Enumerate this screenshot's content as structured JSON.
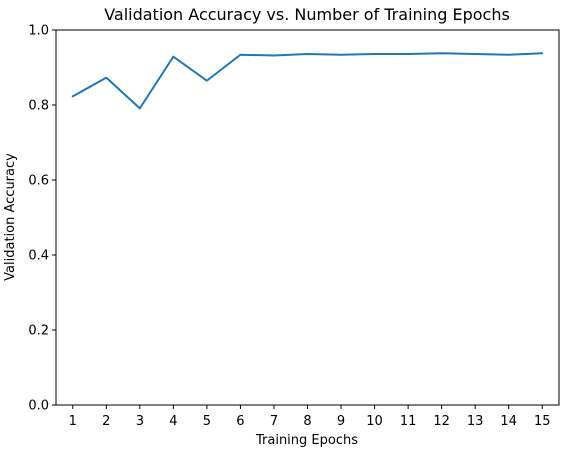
{
  "chart_data": {
    "type": "line",
    "title": "Validation Accuracy vs. Number of Training Epochs",
    "xlabel": "Training Epochs",
    "ylabel": "Validation Accuracy",
    "x": [
      1,
      2,
      3,
      4,
      5,
      6,
      7,
      8,
      9,
      10,
      11,
      12,
      13,
      14,
      15
    ],
    "xticks": [
      "1",
      "2",
      "3",
      "4",
      "5",
      "6",
      "7",
      "8",
      "9",
      "10",
      "11",
      "12",
      "13",
      "14",
      "15"
    ],
    "xlim": [
      0.5,
      15.5
    ],
    "ylim": [
      0.0,
      1.0
    ],
    "yticks": [
      "0.0",
      "0.2",
      "0.4",
      "0.6",
      "0.8",
      "1.0"
    ],
    "ytick_values": [
      0.0,
      0.2,
      0.4,
      0.6,
      0.8,
      1.0
    ],
    "grid": false,
    "series": [
      {
        "color": "#1f77b4",
        "values": [
          0.823,
          0.873,
          0.791,
          0.929,
          0.865,
          0.934,
          0.932,
          0.936,
          0.934,
          0.936,
          0.936,
          0.938,
          0.936,
          0.934,
          0.938
        ]
      }
    ]
  }
}
